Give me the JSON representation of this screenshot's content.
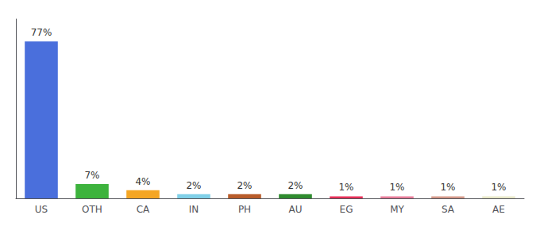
{
  "chart_data": {
    "type": "bar",
    "categories": [
      "US",
      "OTH",
      "CA",
      "IN",
      "PH",
      "AU",
      "EG",
      "MY",
      "SA",
      "AE"
    ],
    "values": [
      77,
      7,
      4,
      2,
      2,
      2,
      1,
      1,
      1,
      1
    ],
    "value_labels": [
      "77%",
      "7%",
      "4%",
      "2%",
      "2%",
      "2%",
      "1%",
      "1%",
      "1%",
      "1%"
    ],
    "colors": [
      "#4a6fdc",
      "#3db33d",
      "#f5a623",
      "#80d0e8",
      "#b85c2a",
      "#2e8b2e",
      "#e8315a",
      "#e87d9a",
      "#d4998a",
      "#e8e8c8"
    ],
    "ylim": [
      0,
      88
    ],
    "data_labels": true,
    "tick_labels": "x",
    "grid": false
  }
}
